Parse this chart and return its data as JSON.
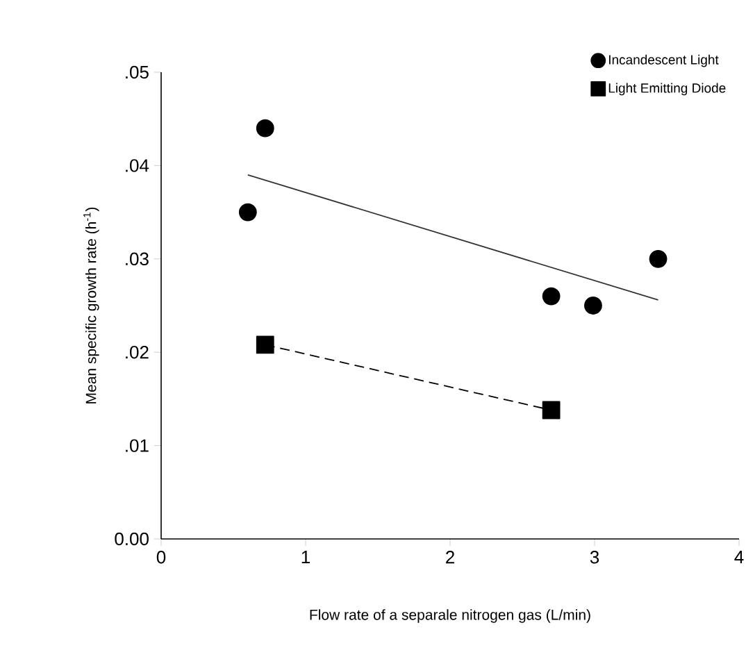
{
  "chart_data": {
    "type": "scatter",
    "xlabel": "Flow rate of a separale nitrogen gas (L/min)",
    "ylabel": "Mean specific growth rate (h$^{-1}$)",
    "xlim": [
      0,
      4
    ],
    "ylim": [
      0,
      0.05
    ],
    "xticks": [
      0,
      1,
      2,
      3,
      4
    ],
    "yticks": [
      {
        "value": 0,
        "label": "0.00"
      },
      {
        "value": 0.01,
        "label": ".01"
      },
      {
        "value": 0.02,
        "label": ".02"
      },
      {
        "value": 0.03,
        "label": ".03"
      },
      {
        "value": 0.04,
        "label": ".04"
      },
      {
        "value": 0.05,
        "label": ".05"
      }
    ],
    "grid": false,
    "legend": "top right",
    "series": [
      {
        "name": "Incandescent Light",
        "marker": "circle",
        "color": "#000000",
        "x": [
          0.6,
          0.72,
          2.7,
          2.99,
          3.44
        ],
        "values": [
          0.035,
          0.044,
          0.026,
          0.025,
          0.03
        ]
      },
      {
        "type": "line",
        "marker": "none",
        "line_style": "solid",
        "color": "#333333",
        "x": [
          0.6,
          3.44
        ],
        "values": [
          0.039,
          0.0256
        ]
      },
      {
        "name": "Light Emitting Diode",
        "type": "line",
        "marker": "square",
        "line_style": "dashed",
        "color": "#000000",
        "x": [
          0.72,
          2.7
        ],
        "values": [
          0.0208,
          0.0138
        ]
      }
    ]
  }
}
